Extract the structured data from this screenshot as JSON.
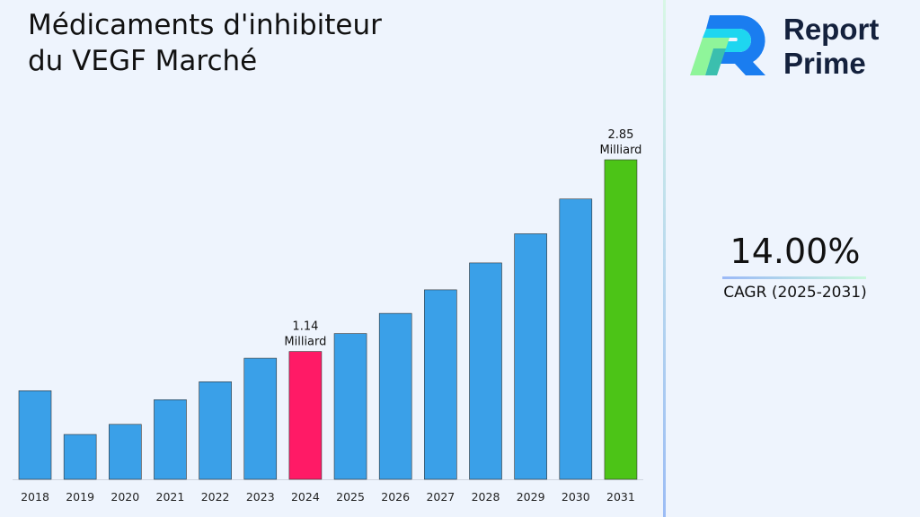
{
  "title": "Médicaments d'inhibiteur du VEGF Marché",
  "logo": {
    "line1": "Report",
    "line2": "Prime"
  },
  "cagr": {
    "value": "14.00%",
    "label": "CAGR (2025-2031)"
  },
  "colors": {
    "default_bar": "#3aa0e8",
    "highlight_2024": "#ff1a66",
    "highlight_2031": "#4cc417",
    "background": "#eef4fd"
  },
  "chart_data": {
    "type": "bar",
    "title": "Médicaments d'inhibiteur du VEGF Marché",
    "xlabel": "",
    "ylabel": "",
    "categories": [
      "2018",
      "2019",
      "2020",
      "2021",
      "2022",
      "2023",
      "2024",
      "2025",
      "2026",
      "2027",
      "2028",
      "2029",
      "2030",
      "2031"
    ],
    "values": [
      0.79,
      0.4,
      0.49,
      0.71,
      0.87,
      1.08,
      1.14,
      1.3,
      1.48,
      1.69,
      1.93,
      2.19,
      2.5,
      2.85
    ],
    "annotations": [
      {
        "category": "2024",
        "value": "1.14",
        "unit": "Milliard"
      },
      {
        "category": "2031",
        "value": "2.85",
        "unit": "Milliard"
      }
    ],
    "ylim": [
      0,
      3
    ],
    "grid": false,
    "legend": "none"
  }
}
